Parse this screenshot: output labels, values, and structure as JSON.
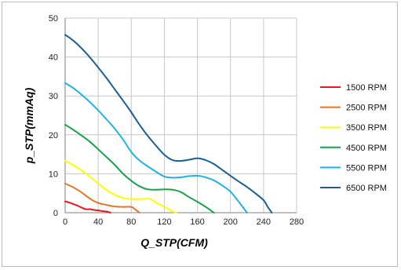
{
  "chart_data": {
    "type": "line",
    "title": "",
    "xlabel": "Q_STP(CFM)",
    "ylabel": "p_STP(mmAq)",
    "xlim": [
      0,
      280
    ],
    "ylim": [
      0,
      50
    ],
    "x_ticks": [
      0,
      40,
      80,
      120,
      160,
      200,
      240,
      280
    ],
    "y_ticks": [
      0,
      10,
      20,
      30,
      40,
      50
    ],
    "grid": true,
    "legend_position": "right",
    "series": [
      {
        "name": "1500 RPM",
        "color": "#e31a1c",
        "x": [
          0,
          5,
          10,
          15,
          20,
          25,
          30,
          35,
          40,
          45,
          50,
          55
        ],
        "y": [
          2.9,
          2.6,
          2.2,
          1.8,
          1.3,
          0.9,
          0.9,
          0.7,
          0.6,
          0.4,
          0.3,
          0.0
        ]
      },
      {
        "name": "2500 RPM",
        "color": "#e0772b",
        "x": [
          0,
          10,
          20,
          30,
          40,
          50,
          60,
          70,
          80,
          85,
          90
        ],
        "y": [
          7.5,
          6.5,
          5.2,
          3.6,
          2.5,
          2.0,
          1.6,
          1.5,
          1.5,
          0.8,
          0.0
        ]
      },
      {
        "name": "3500 RPM",
        "color": "#ffff00",
        "x": [
          0,
          10,
          20,
          30,
          40,
          50,
          60,
          70,
          80,
          90,
          100,
          105,
          110,
          120,
          130,
          135
        ],
        "y": [
          13.3,
          12.2,
          10.8,
          9.2,
          7.5,
          5.8,
          4.6,
          3.8,
          3.5,
          3.5,
          3.6,
          3.3,
          2.6,
          1.5,
          0.3,
          0.0
        ]
      },
      {
        "name": "4500 RPM",
        "color": "#1aa14b",
        "x": [
          0,
          10,
          20,
          30,
          40,
          50,
          60,
          70,
          80,
          90,
          100,
          110,
          120,
          130,
          140,
          150,
          160,
          170,
          180
        ],
        "y": [
          22.6,
          21.3,
          19.8,
          18.2,
          16.3,
          14.3,
          12.3,
          10.0,
          8.2,
          6.8,
          6.0,
          5.9,
          6.0,
          5.9,
          5.3,
          4.0,
          2.8,
          1.5,
          0.0
        ]
      },
      {
        "name": "5500 RPM",
        "color": "#1fb2e3",
        "x": [
          0,
          10,
          20,
          30,
          40,
          50,
          60,
          70,
          80,
          90,
          100,
          110,
          120,
          130,
          140,
          150,
          160,
          170,
          180,
          190,
          200,
          210,
          220
        ],
        "y": [
          33.3,
          32.0,
          30.3,
          28.4,
          26.3,
          24.0,
          21.6,
          18.8,
          15.6,
          13.4,
          11.9,
          10.5,
          9.3,
          9.0,
          9.1,
          9.4,
          9.5,
          9.1,
          8.3,
          7.0,
          5.4,
          2.8,
          0.0
        ]
      },
      {
        "name": "6500 RPM",
        "color": "#1b5f96",
        "x": [
          0,
          10,
          20,
          30,
          40,
          50,
          60,
          70,
          80,
          90,
          100,
          110,
          120,
          130,
          140,
          150,
          160,
          170,
          180,
          190,
          200,
          210,
          220,
          230,
          240,
          245,
          250
        ],
        "y": [
          45.7,
          44.2,
          42.2,
          39.9,
          37.3,
          34.6,
          31.7,
          28.8,
          25.8,
          22.6,
          19.7,
          17.2,
          14.9,
          13.5,
          13.3,
          13.6,
          14.0,
          13.5,
          12.5,
          11.0,
          9.5,
          8.0,
          6.6,
          5.0,
          3.2,
          1.5,
          0.0
        ]
      }
    ]
  }
}
